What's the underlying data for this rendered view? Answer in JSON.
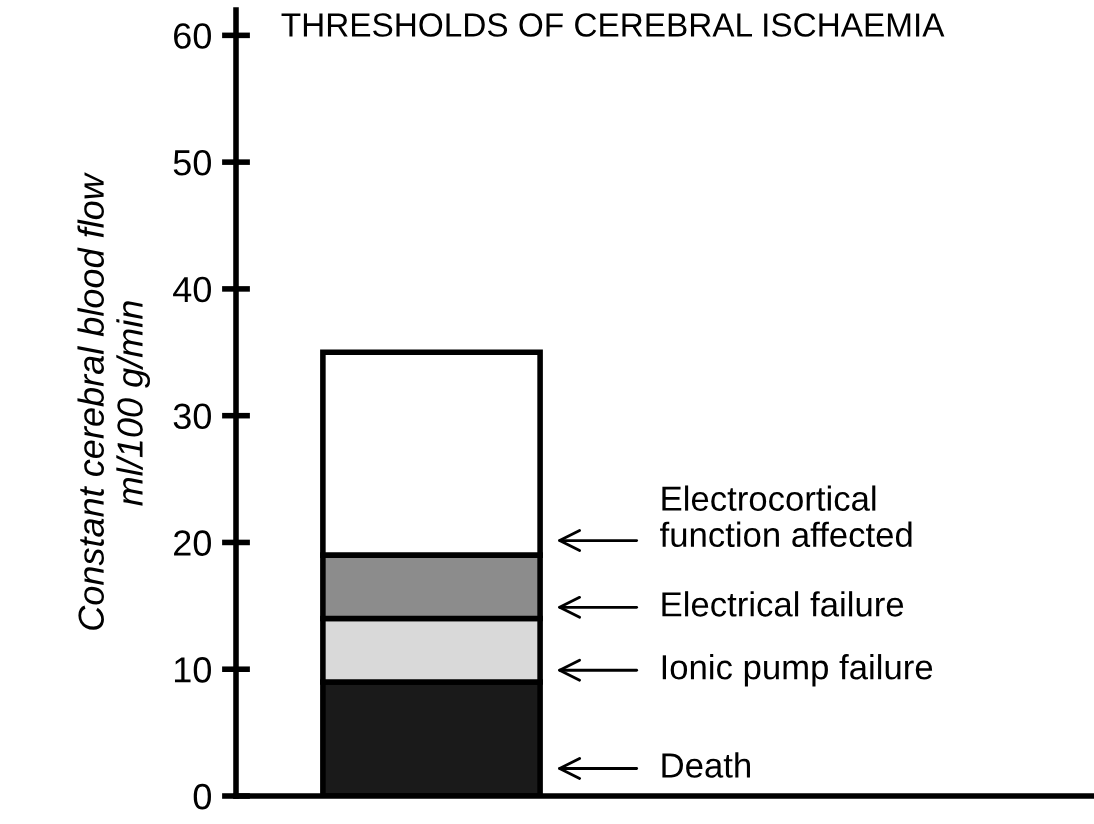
{
  "chart_data": {
    "type": "bar",
    "stacked": true,
    "title": "THRESHOLDS OF CEREBRAL ISCHAEMIA",
    "ylabel": "Constant cerebral blood flow\nml/100 g/min",
    "categories": [
      null
    ],
    "series": [
      {
        "color": "#1a1a1a",
        "values": [
          9
        ]
      },
      {
        "color": "#d9d9d9",
        "values": [
          5
        ]
      },
      {
        "color": "#8c8c8c",
        "values": [
          5
        ]
      },
      {
        "color": "#ffffff",
        "values": [
          16
        ]
      }
    ],
    "ylim": [
      0,
      62
    ],
    "yticks": [
      0,
      10,
      20,
      30,
      40,
      50,
      60
    ],
    "grid": false,
    "legend": false,
    "tick_labels": "y",
    "annotations": [
      "Electrocortical\nfunction affected",
      "Electrical failure",
      "Ionic pump failure",
      "Death"
    ]
  }
}
